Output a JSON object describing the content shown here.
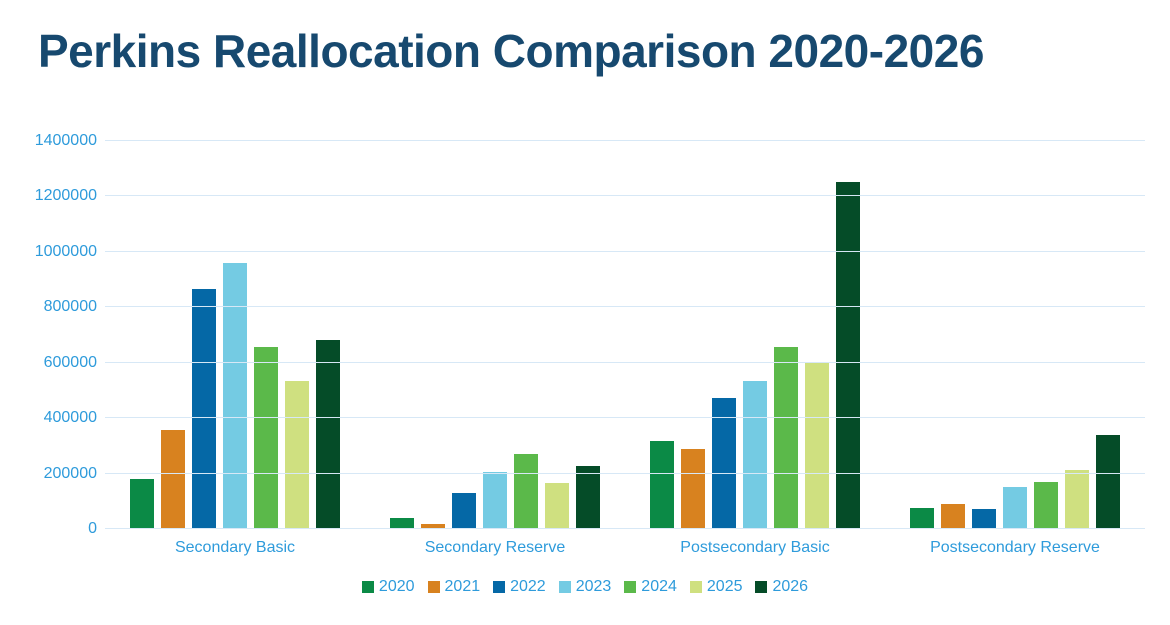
{
  "chart_data": {
    "type": "bar",
    "title": "Perkins Reallocation Comparison 2020-2026",
    "categories": [
      "Secondary Basic",
      "Secondary Reserve",
      "Postsecondary Basic",
      "Postsecondary Reserve"
    ],
    "series": [
      {
        "name": "2020",
        "color": "#0B8A46",
        "values": [
          182000,
          41000,
          318000,
          76000
        ]
      },
      {
        "name": "2021",
        "color": "#D8821F",
        "values": [
          357000,
          17000,
          287000,
          92000
        ]
      },
      {
        "name": "2022",
        "color": "#0568A6",
        "values": [
          865000,
          130000,
          473000,
          74000
        ]
      },
      {
        "name": "2023",
        "color": "#74CBE3",
        "values": [
          960000,
          204000,
          535000,
          152000
        ]
      },
      {
        "name": "2024",
        "color": "#5BB94A",
        "values": [
          658000,
          272000,
          658000,
          168000
        ]
      },
      {
        "name": "2025",
        "color": "#CFE080",
        "values": [
          535000,
          167000,
          598000,
          214000
        ]
      },
      {
        "name": "2026",
        "color": "#054C28",
        "values": [
          683000,
          228000,
          1251000,
          338000
        ]
      }
    ],
    "ylim": [
      0,
      1400000
    ],
    "yticks": [
      0,
      200000,
      400000,
      600000,
      800000,
      1000000,
      1200000,
      1400000
    ],
    "ytick_labels": [
      "0",
      "200000",
      "400000",
      "600000",
      "800000",
      "1000000",
      "1200000",
      "1400000"
    ],
    "xlabel": "",
    "ylabel": "",
    "grid": "horizontal",
    "legend_position": "bottom",
    "legend_labels": [
      "2020",
      "2021",
      "2022",
      "2023",
      "2024",
      "2025",
      "2026"
    ],
    "palette": {
      "background": "#FFFFFF",
      "title_color": "#17496F",
      "axis_label_color": "#2E9BDB",
      "gridline_color": "#D7E8F6"
    }
  }
}
